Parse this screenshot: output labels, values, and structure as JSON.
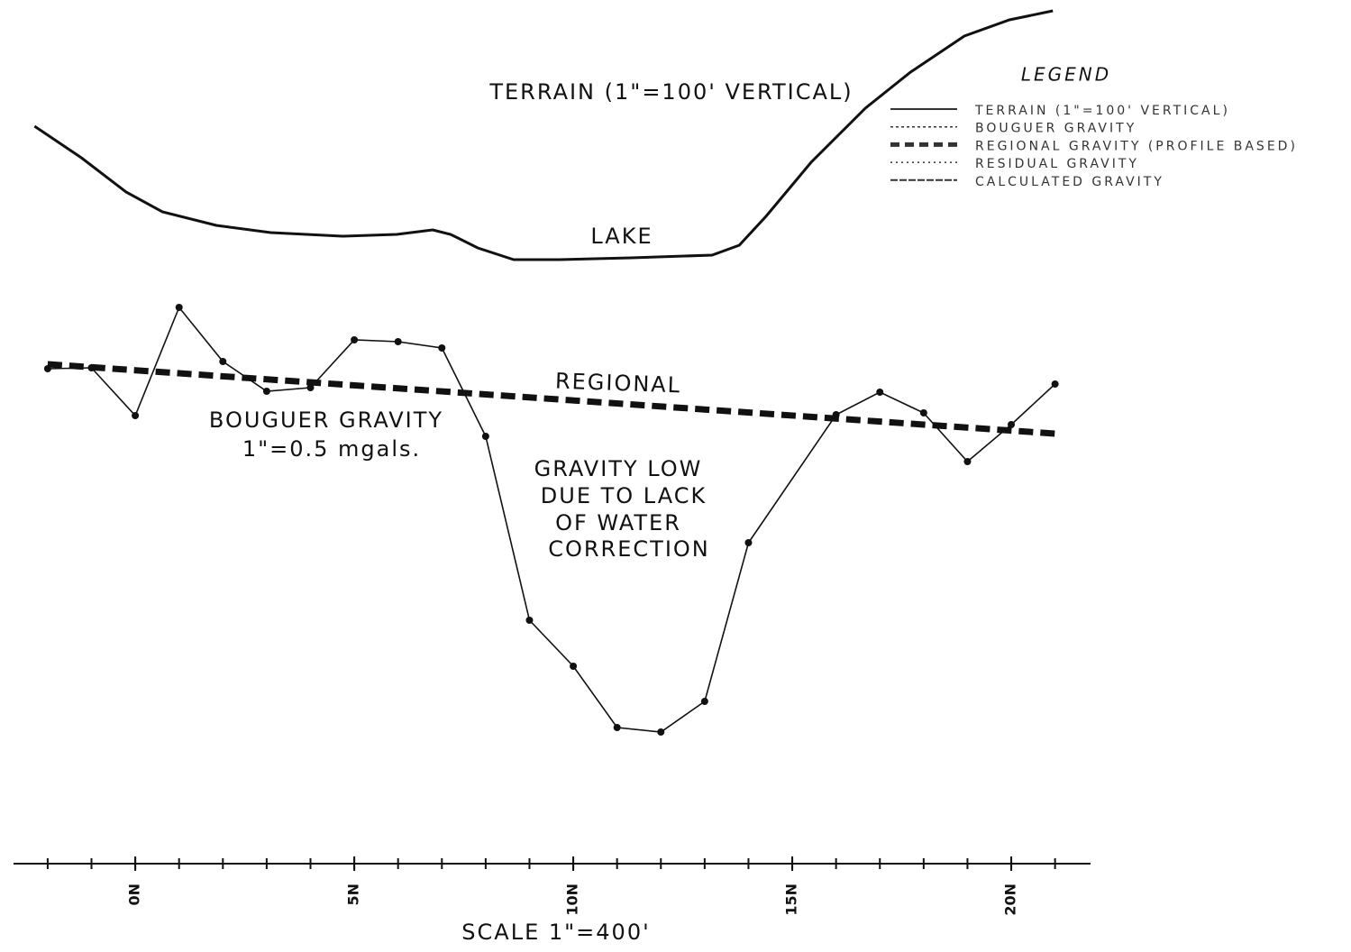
{
  "chart_data": {
    "type": "line",
    "xlim": [
      -2.78,
      21.81
    ],
    "xticks": [
      {
        "value": 0,
        "label": "0N"
      },
      {
        "value": 5,
        "label": "5N"
      },
      {
        "value": 10,
        "label": "10N"
      },
      {
        "value": 15,
        "label": "15N"
      },
      {
        "value": 20,
        "label": "20N"
      }
    ],
    "xminorticks": [
      -2,
      -1,
      0,
      1,
      2,
      3,
      4,
      5,
      6,
      7,
      8,
      9,
      10,
      11,
      12,
      13,
      14,
      15,
      16,
      17,
      18,
      19,
      20,
      21
    ],
    "ylim": [
      0,
      600
    ],
    "y2lim": [
      0,
      300
    ],
    "series": [
      {
        "axis": "y2",
        "color": "#111111",
        "dash": false,
        "markers": false,
        "x": [
          -2.3,
          -1.23,
          -0.21,
          0.62,
          1.85,
          3.09,
          4.73,
          5.97,
          6.79,
          7.2,
          7.82,
          8.64,
          9.67,
          11.32,
          13.17,
          13.79,
          14.4,
          15.43,
          16.67,
          17.7,
          18.93,
          19.96,
          20.95
        ],
        "values": [
          160,
          125,
          87,
          65,
          50,
          42,
          38,
          40,
          45,
          40,
          25,
          12,
          12,
          14,
          17,
          28,
          60,
          120,
          180,
          220,
          260,
          278,
          288
        ]
      },
      {
        "color": "#111111",
        "dash": false,
        "markers": true,
        "x": [
          -2,
          -1,
          0,
          1,
          2,
          3,
          4,
          5,
          6,
          7,
          8,
          9,
          10,
          11,
          12,
          13,
          14,
          16,
          17,
          18,
          19,
          20,
          21
        ],
        "values": [
          491,
          492,
          439,
          559,
          499,
          466,
          470,
          523,
          521,
          514,
          416,
          212,
          161,
          93,
          88,
          122,
          298,
          440,
          465,
          442,
          388,
          429,
          474
        ]
      },
      {
        "color": "#111111",
        "dash": true,
        "markers": false,
        "x": [
          -2,
          21
        ],
        "values": [
          496,
          419
        ]
      }
    ],
    "annotations": [
      "TERRAIN (1\"=100' VERTICAL)",
      "LAKE",
      "REGIONAL",
      "BOUGUER GRAVITY",
      "1\"=0.5 mgals.",
      "GRAVITY LOW",
      "DUE TO LACK",
      "OF WATER",
      "CORRECTION",
      "SCALE 1\"=400'"
    ],
    "legend_title": "LEGEND",
    "legend": [
      "TERRAIN (1\"=100' VERTICAL)",
      "BOUGUER GRAVITY",
      "REGIONAL GRAVITY (PROFILE BASED)",
      "RESIDUAL GRAVITY",
      "CALCULATED GRAVITY"
    ]
  }
}
